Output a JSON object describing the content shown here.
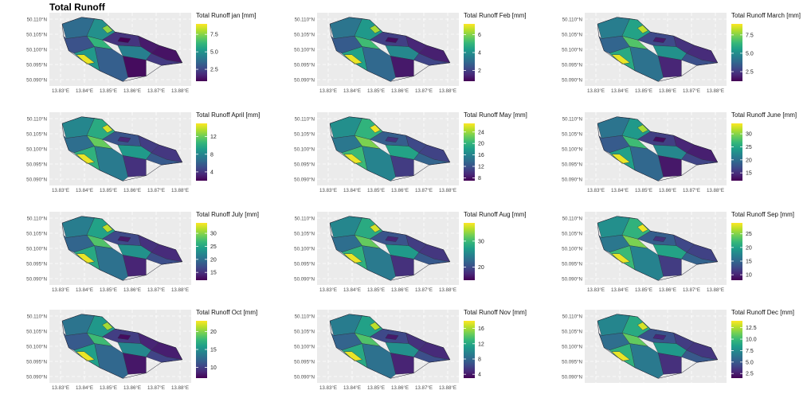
{
  "figure": {
    "title": "Total Runoff"
  },
  "colors": {
    "panel_bg": "#ebebeb",
    "grid": "#ffffff",
    "viridis": [
      "#440154",
      "#482878",
      "#3e4a89",
      "#31688e",
      "#26828e",
      "#1f9e89",
      "#35b779",
      "#6ece58",
      "#b5de2b",
      "#fde725"
    ]
  },
  "map_icon": "catchment-polygon-map",
  "chart_data": [
    {
      "type": "heatmap",
      "title": "Total Runoff jan [mm]",
      "legend_ticks": [
        {
          "value": 7.5,
          "label": "7.5"
        },
        {
          "value": 5.0,
          "label": "5.0"
        },
        {
          "value": 2.5,
          "label": "2.5"
        }
      ],
      "range": [
        0.8,
        9.0
      ],
      "lat_labels": [
        "50.110°N",
        "50.105°N",
        "50.100°N",
        "50.095°N",
        "50.090°N"
      ],
      "lon_labels": [
        "13.83°E",
        "13.84°E",
        "13.85°E",
        "13.86°E",
        "13.87°E",
        "13.88°E"
      ]
    },
    {
      "type": "heatmap",
      "title": "Total Runoff Feb [mm]",
      "legend_ticks": [
        {
          "value": 6,
          "label": "6"
        },
        {
          "value": 4,
          "label": "4"
        },
        {
          "value": 2,
          "label": "2"
        }
      ],
      "range": [
        0.8,
        7.2
      ],
      "lat_labels": [
        "50.110°N",
        "50.105°N",
        "50.100°N",
        "50.095°N",
        "50.090°N"
      ],
      "lon_labels": [
        "13.83°E",
        "13.84°E",
        "13.85°E",
        "13.86°E",
        "13.87°E",
        "13.88°E"
      ]
    },
    {
      "type": "heatmap",
      "title": "Total Runoff March [mm]",
      "legend_ticks": [
        {
          "value": 7.5,
          "label": "7.5"
        },
        {
          "value": 5.0,
          "label": "5.0"
        },
        {
          "value": 2.5,
          "label": "2.5"
        }
      ],
      "range": [
        1.2,
        9.0
      ],
      "lat_labels": [
        "50.110°N",
        "50.105°N",
        "50.100°N",
        "50.095°N",
        "50.090°N"
      ],
      "lon_labels": [
        "13.83°E",
        "13.84°E",
        "13.85°E",
        "13.86°E",
        "13.87°E",
        "13.88°E"
      ]
    },
    {
      "type": "heatmap",
      "title": "Total Runoff April [mm]",
      "legend_ticks": [
        {
          "value": 12,
          "label": "12"
        },
        {
          "value": 8,
          "label": "8"
        },
        {
          "value": 4,
          "label": "4"
        }
      ],
      "range": [
        2,
        15
      ],
      "lat_labels": [
        "50.110°N",
        "50.105°N",
        "50.100°N",
        "50.095°N",
        "50.090°N"
      ],
      "lon_labels": [
        "13.83°E",
        "13.84°E",
        "13.85°E",
        "13.86°E",
        "13.87°E",
        "13.88°E"
      ]
    },
    {
      "type": "heatmap",
      "title": "Total Runoff May [mm]",
      "legend_ticks": [
        {
          "value": 24,
          "label": "24"
        },
        {
          "value": 20,
          "label": "20"
        },
        {
          "value": 16,
          "label": "16"
        },
        {
          "value": 12,
          "label": "12"
        },
        {
          "value": 8,
          "label": "8"
        }
      ],
      "range": [
        7,
        27
      ],
      "lat_labels": [
        "50.110°N",
        "50.105°N",
        "50.100°N",
        "50.095°N",
        "50.090°N"
      ],
      "lon_labels": [
        "13.83°E",
        "13.84°E",
        "13.85°E",
        "13.86°E",
        "13.87°E",
        "13.88°E"
      ]
    },
    {
      "type": "heatmap",
      "title": "Total Runoff June [mm]",
      "legend_ticks": [
        {
          "value": 30,
          "label": "30"
        },
        {
          "value": 25,
          "label": "25"
        },
        {
          "value": 20,
          "label": "20"
        },
        {
          "value": 15,
          "label": "15"
        }
      ],
      "range": [
        12,
        34
      ],
      "lat_labels": [
        "50.110°N",
        "50.105°N",
        "50.100°N",
        "50.095°N",
        "50.090°N"
      ],
      "lon_labels": [
        "13.83°E",
        "13.84°E",
        "13.85°E",
        "13.86°E",
        "13.87°E",
        "13.88°E"
      ]
    },
    {
      "type": "heatmap",
      "title": "Total Runoff July [mm]",
      "legend_ticks": [
        {
          "value": 30,
          "label": "30"
        },
        {
          "value": 25,
          "label": "25"
        },
        {
          "value": 20,
          "label": "20"
        },
        {
          "value": 15,
          "label": "15"
        }
      ],
      "range": [
        12,
        34
      ],
      "lat_labels": [
        "50.110°N",
        "50.105°N",
        "50.100°N",
        "50.095°N",
        "50.090°N"
      ],
      "lon_labels": [
        "13.83°E",
        "13.84°E",
        "13.85°E",
        "13.86°E",
        "13.87°E",
        "13.88°E"
      ]
    },
    {
      "type": "heatmap",
      "title": "Total Runoff Aug [mm]",
      "legend_ticks": [
        {
          "value": 30,
          "label": "30"
        },
        {
          "value": 20,
          "label": "20"
        }
      ],
      "range": [
        15,
        37
      ],
      "lat_labels": [
        "50.110°N",
        "50.105°N",
        "50.100°N",
        "50.095°N",
        "50.090°N"
      ],
      "lon_labels": [
        "13.83°E",
        "13.84°E",
        "13.85°E",
        "13.86°E",
        "13.87°E",
        "13.88°E"
      ]
    },
    {
      "type": "heatmap",
      "title": "Total Runoff Sep [mm]",
      "legend_ticks": [
        {
          "value": 25,
          "label": "25"
        },
        {
          "value": 20,
          "label": "20"
        },
        {
          "value": 15,
          "label": "15"
        },
        {
          "value": 10,
          "label": "10"
        }
      ],
      "range": [
        8,
        29
      ],
      "lat_labels": [
        "50.110°N",
        "50.105°N",
        "50.100°N",
        "50.095°N",
        "50.090°N"
      ],
      "lon_labels": [
        "13.83°E",
        "13.84°E",
        "13.85°E",
        "13.86°E",
        "13.87°E",
        "13.88°E"
      ]
    },
    {
      "type": "heatmap",
      "title": "Total Runoff Oct [mm]",
      "legend_ticks": [
        {
          "value": 20,
          "label": "20"
        },
        {
          "value": 15,
          "label": "15"
        },
        {
          "value": 10,
          "label": "10"
        }
      ],
      "range": [
        7,
        23
      ],
      "lat_labels": [
        "50.110°N",
        "50.105°N",
        "50.100°N",
        "50.095°N",
        "50.090°N"
      ],
      "lon_labels": [
        "13.83°E",
        "13.84°E",
        "13.85°E",
        "13.86°E",
        "13.87°E",
        "13.88°E"
      ]
    },
    {
      "type": "heatmap",
      "title": "Total Runoff Nov [mm]",
      "legend_ticks": [
        {
          "value": 16,
          "label": "16"
        },
        {
          "value": 12,
          "label": "12"
        },
        {
          "value": 8,
          "label": "8"
        },
        {
          "value": 4,
          "label": "4"
        }
      ],
      "range": [
        3,
        18
      ],
      "lat_labels": [
        "50.110°N",
        "50.105°N",
        "50.100°N",
        "50.095°N",
        "50.090°N"
      ],
      "lon_labels": [
        "13.83°E",
        "13.84°E",
        "13.85°E",
        "13.86°E",
        "13.87°E",
        "13.88°E"
      ]
    },
    {
      "type": "heatmap",
      "title": "Total Runoff Dec [mm]",
      "legend_ticks": [
        {
          "value": 12.5,
          "label": "12.5"
        },
        {
          "value": 10.0,
          "label": "10.0"
        },
        {
          "value": 7.5,
          "label": "7.5"
        },
        {
          "value": 5.0,
          "label": "5.0"
        },
        {
          "value": 2.5,
          "label": "2.5"
        }
      ],
      "range": [
        1.5,
        14
      ],
      "lat_labels": [
        "50.110°N",
        "50.105°N",
        "50.100°N",
        "50.095°N",
        "50.090°N"
      ],
      "lon_labels": []
    }
  ]
}
